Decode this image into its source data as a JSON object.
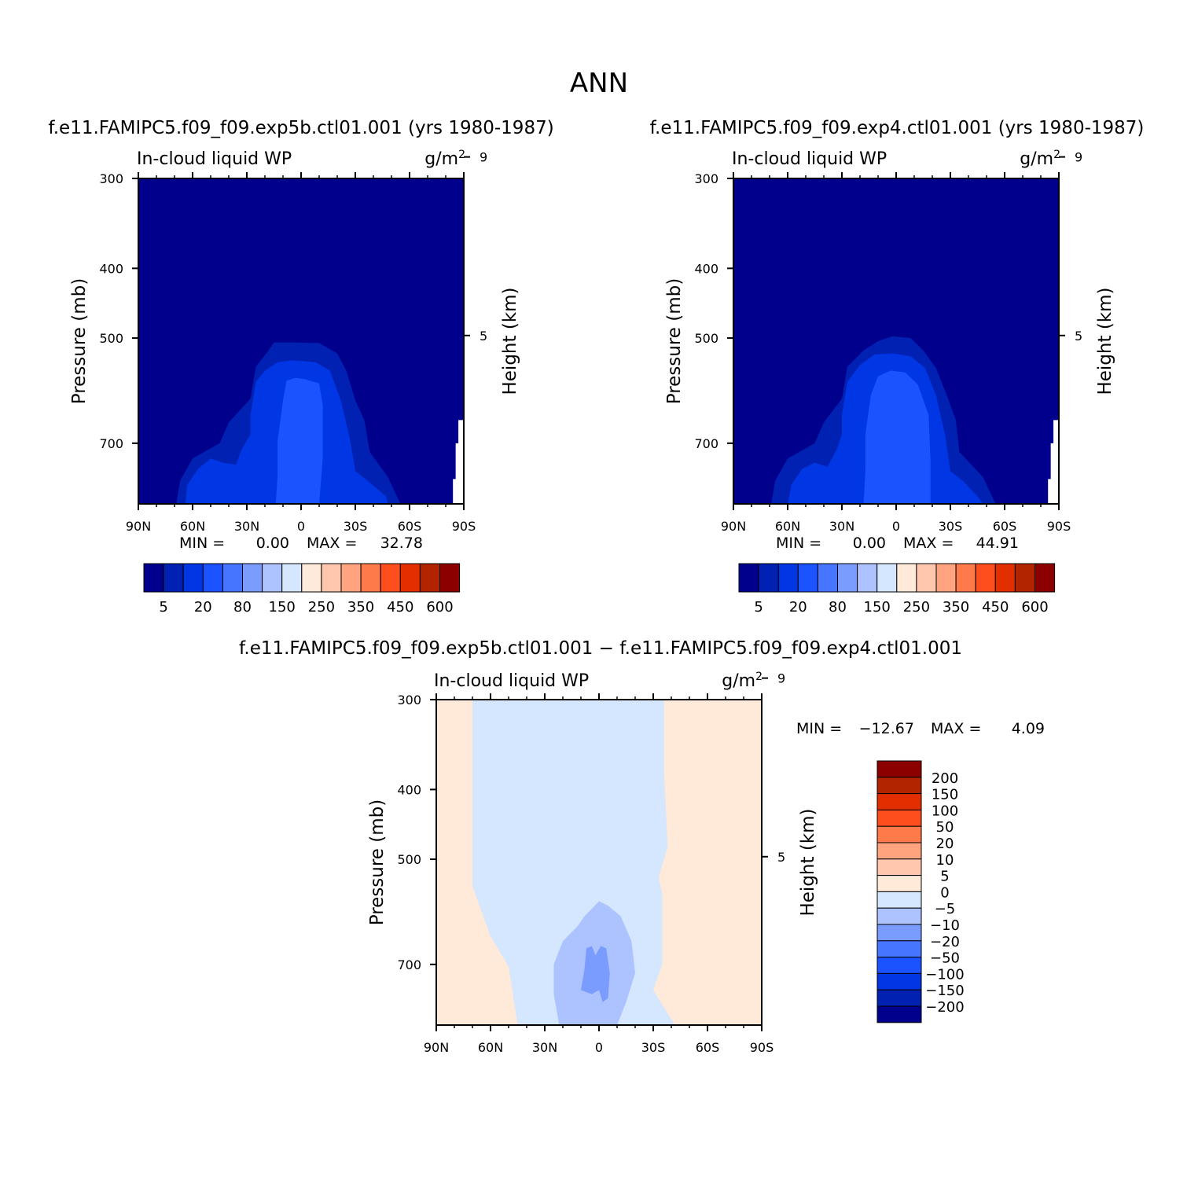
{
  "page": {
    "title": "ANN"
  },
  "panels": [
    {
      "case_title": "f.e11.FAMIPC5.f09_f09.exp5b.ctl01.001 (yrs 1980-1987)",
      "variable": "In-cloud liquid WP",
      "units": "g/m",
      "units_exponent": "2",
      "min_label": "MIN =",
      "min_value": "0.00",
      "max_label": "MAX =",
      "max_value": "32.78"
    },
    {
      "case_title": "f.e11.FAMIPC5.f09_f09.exp4.ctl01.001 (yrs 1980-1987)",
      "variable": "In-cloud liquid WP",
      "units": "g/m",
      "units_exponent": "2",
      "min_label": "MIN =",
      "min_value": "0.00",
      "max_label": "MAX =",
      "max_value": "44.91"
    },
    {
      "case_title": "f.e11.FAMIPC5.f09_f09.exp5b.ctl01.001 − f.e11.FAMIPC5.f09_f09.exp4.ctl01.001",
      "variable": "In-cloud liquid WP",
      "units": "g/m",
      "units_exponent": "2",
      "min_label": "MIN =",
      "min_value": "−12.67",
      "max_label": "MAX =",
      "max_value": "4.09"
    }
  ],
  "axes": {
    "ylabel": "Pressure (mb)",
    "y2label": "Height (km)",
    "pressure_ticks": [
      "300",
      "400",
      "500",
      "700"
    ],
    "height_ticks": [
      "9",
      "5"
    ],
    "lat_ticks": [
      "90N",
      "60N",
      "30N",
      "0",
      "30S",
      "60S",
      "90S"
    ]
  },
  "colorbars": {
    "field": {
      "colors": [
        "#00008c",
        "#0021b2",
        "#0036e3",
        "#1a53ff",
        "#4675ff",
        "#7a9cff",
        "#adc3ff",
        "#d5e6ff",
        "#ffe9d9",
        "#ffc7ad",
        "#ffa47f",
        "#ff7a4a",
        "#ff4e1e",
        "#e32f00",
        "#b22400",
        "#8c0000"
      ],
      "labels": [
        "5",
        "20",
        "80",
        "150",
        "250",
        "350",
        "450",
        "600"
      ]
    },
    "diff": {
      "colors": [
        "#8c0000",
        "#b22400",
        "#e32f00",
        "#ff4e1e",
        "#ff7a4a",
        "#ffa47f",
        "#ffc7ad",
        "#ffe9d9",
        "#d5e6ff",
        "#adc3ff",
        "#7a9cff",
        "#4675ff",
        "#1a53ff",
        "#0036e3",
        "#0021b2",
        "#00008c"
      ],
      "labels": [
        "200",
        "150",
        "100",
        "50",
        "20",
        "10",
        "5",
        "0",
        "−5",
        "−10",
        "−20",
        "−50",
        "−100",
        "−150",
        "−200"
      ]
    }
  },
  "chart_data": [
    {
      "type": "heatmap",
      "title": "f.e11.FAMIPC5.f09_f09.exp5b.ctl01.001 (yrs 1980-1987)",
      "variable": "In-cloud liquid WP",
      "units": "g/m2",
      "x": "latitude (90N to 90S)",
      "y": "pressure (mb), 300 to ~850",
      "xlim": [
        90,
        -90
      ],
      "ylim": [
        300,
        850
      ],
      "min": 0.0,
      "max": 32.78,
      "contour_levels": [
        5,
        10,
        15,
        20
      ],
      "contours": [
        {
          "level": 5,
          "color": "#0021b2",
          "points": [
            [
              69,
              850
            ],
            [
              67,
              790
            ],
            [
              60,
              735
            ],
            [
              45,
              700
            ],
            [
              40,
              655
            ],
            [
              28,
              607
            ],
            [
              25,
              548
            ],
            [
              18,
              520
            ],
            [
              15,
              507
            ],
            [
              5,
              507
            ],
            [
              -10,
              508
            ],
            [
              -20,
              525
            ],
            [
              -25,
              555
            ],
            [
              -30,
              610
            ],
            [
              -35,
              650
            ],
            [
              -38,
              720
            ],
            [
              -48,
              780
            ],
            [
              -55,
              850
            ]
          ]
        },
        {
          "level": 10,
          "color": "#0036e3",
          "points": [
            [
              64,
              850
            ],
            [
              63,
              800
            ],
            [
              57,
              760
            ],
            [
              50,
              735
            ],
            [
              43,
              745
            ],
            [
              36,
              750
            ],
            [
              33,
              715
            ],
            [
              28,
              680
            ],
            [
              28,
              640
            ],
            [
              25,
              575
            ],
            [
              20,
              555
            ],
            [
              13,
              540
            ],
            [
              5,
              537
            ],
            [
              -8,
              540
            ],
            [
              -16,
              555
            ],
            [
              -22,
              610
            ],
            [
              -27,
              690
            ],
            [
              -30,
              765
            ],
            [
              -37,
              790
            ],
            [
              -47,
              830
            ],
            [
              -48,
              850
            ]
          ]
        },
        {
          "level": 15,
          "color": "#1a53ff",
          "points": [
            [
              14,
              850
            ],
            [
              13,
              775
            ],
            [
              13,
              695
            ],
            [
              10,
              610
            ],
            [
              8,
              573
            ],
            [
              3,
              568
            ],
            [
              -2,
              570
            ],
            [
              -10,
              578
            ],
            [
              -12,
              620
            ],
            [
              -12,
              735
            ],
            [
              -10,
              850
            ]
          ]
        }
      ]
    },
    {
      "type": "heatmap",
      "title": "f.e11.FAMIPC5.f09_f09.exp4.ctl01.001 (yrs 1980-1987)",
      "variable": "In-cloud liquid WP",
      "units": "g/m2",
      "x": "latitude (90N to 90S)",
      "y": "pressure (mb), 300 to ~850",
      "xlim": [
        90,
        -90
      ],
      "ylim": [
        300,
        850
      ],
      "min": 0.0,
      "max": 44.91,
      "contour_levels": [
        5,
        10,
        15,
        20
      ],
      "contours": [
        {
          "level": 5,
          "color": "#0021b2",
          "points": [
            [
              69,
              850
            ],
            [
              67,
              790
            ],
            [
              60,
              735
            ],
            [
              45,
              700
            ],
            [
              40,
              655
            ],
            [
              30,
              607
            ],
            [
              27,
              548
            ],
            [
              18,
              520
            ],
            [
              10,
              505
            ],
            [
              2,
              497
            ],
            [
              -8,
              500
            ],
            [
              -15,
              520
            ],
            [
              -22,
              550
            ],
            [
              -28,
              600
            ],
            [
              -33,
              650
            ],
            [
              -35,
              720
            ],
            [
              -48,
              780
            ],
            [
              -55,
              850
            ]
          ]
        },
        {
          "level": 10,
          "color": "#0036e3",
          "points": [
            [
              60,
              850
            ],
            [
              58,
              800
            ],
            [
              52,
              760
            ],
            [
              45,
              745
            ],
            [
              38,
              755
            ],
            [
              33,
              715
            ],
            [
              30,
              680
            ],
            [
              30,
              640
            ],
            [
              27,
              575
            ],
            [
              20,
              545
            ],
            [
              12,
              527
            ],
            [
              2,
              525
            ],
            [
              -8,
              530
            ],
            [
              -16,
              550
            ],
            [
              -22,
              600
            ],
            [
              -27,
              680
            ],
            [
              -30,
              765
            ],
            [
              -37,
              790
            ],
            [
              -45,
              830
            ],
            [
              -48,
              850
            ]
          ]
        },
        {
          "level": 15,
          "color": "#1a53ff",
          "points": [
            [
              18,
              850
            ],
            [
              17,
              760
            ],
            [
              17,
              680
            ],
            [
              14,
              600
            ],
            [
              10,
              565
            ],
            [
              3,
              555
            ],
            [
              -5,
              558
            ],
            [
              -12,
              580
            ],
            [
              -18,
              640
            ],
            [
              -19,
              740
            ],
            [
              -19,
              850
            ]
          ]
        }
      ]
    },
    {
      "type": "heatmap",
      "title": "f.e11.FAMIPC5.f09_f09.exp5b.ctl01.001 − f.e11.FAMIPC5.f09_f09.exp4.ctl01.001",
      "variable": "In-cloud liquid WP",
      "units": "g/m2",
      "x": "latitude (90N to 90S)",
      "y": "pressure (mb), 300 to ~850",
      "xlim": [
        90,
        -90
      ],
      "ylim": [
        300,
        850
      ],
      "min": -12.67,
      "max": 4.09,
      "contour_levels": [
        -10,
        -5,
        0,
        5
      ],
      "contours": [
        {
          "level": 0,
          "color": "#d5e6ff",
          "points": [
            [
              70,
              300
            ],
            [
              70,
              545
            ],
            [
              60,
              640
            ],
            [
              50,
              705
            ],
            [
              45,
              850
            ],
            [
              -42,
              850
            ],
            [
              -30,
              760
            ],
            [
              -35,
              700
            ],
            [
              -35,
              560
            ],
            [
              -33,
              530
            ],
            [
              -38,
              480
            ],
            [
              -36,
              380
            ],
            [
              -36,
              300
            ]
          ]
        },
        {
          "level": -5,
          "color": "#adc3ff",
          "points": [
            [
              22,
              850
            ],
            [
              25,
              770
            ],
            [
              25,
              700
            ],
            [
              20,
              650
            ],
            [
              12,
              620
            ],
            [
              8,
              600
            ],
            [
              0,
              572
            ],
            [
              -5,
              580
            ],
            [
              -12,
              600
            ],
            [
              -18,
              650
            ],
            [
              -20,
              720
            ],
            [
              -15,
              790
            ],
            [
              -10,
              850
            ]
          ]
        },
        {
          "level": -10,
          "color": "#7a9cff",
          "points": [
            [
              10,
              760
            ],
            [
              8,
              710
            ],
            [
              7,
              665
            ],
            [
              4,
              660
            ],
            [
              2,
              680
            ],
            [
              -1,
              660
            ],
            [
              -4,
              665
            ],
            [
              -6,
              720
            ],
            [
              -5,
              780
            ],
            [
              -2,
              790
            ],
            [
              0,
              760
            ],
            [
              4,
              770
            ],
            [
              10,
              760
            ]
          ]
        }
      ]
    }
  ]
}
